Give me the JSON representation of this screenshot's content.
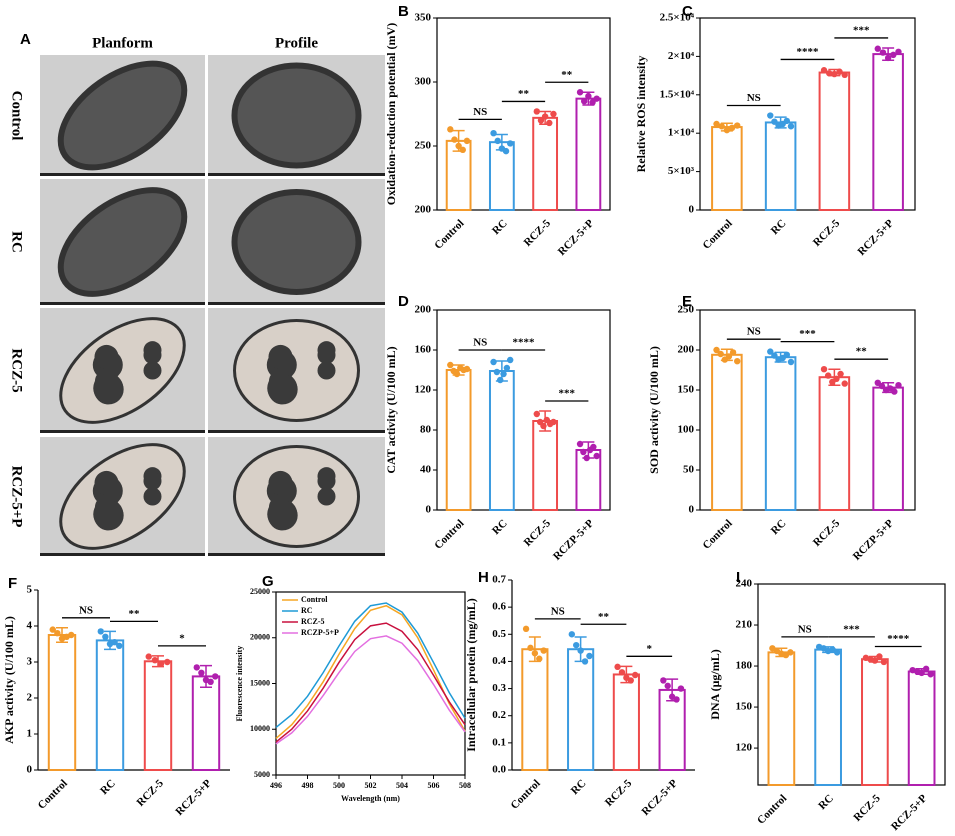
{
  "panel_a": {
    "label": "A",
    "columns": [
      "Planform",
      "Profile"
    ],
    "rows": [
      "Control",
      "RC",
      "RCZ-5",
      "RCZ-5+P"
    ]
  },
  "chart_data": [
    {
      "type": "bar",
      "panel_label": "B",
      "y_label": "Oxidation-reduction potential (mV)",
      "box": true,
      "categories": [
        "Control",
        "RC",
        "RCZ-5",
        "RCZ-5+P"
      ],
      "colors": [
        "#f39a2b",
        "#3b9be0",
        "#ee4b4b",
        "#b01fae"
      ],
      "values": [
        254,
        253,
        272,
        287
      ],
      "errors": [
        8,
        6,
        5,
        5
      ],
      "points": [
        [
          263,
          255,
          250,
          247,
          254
        ],
        [
          260,
          254,
          248,
          246,
          252
        ],
        [
          277,
          270,
          273,
          268,
          275
        ],
        [
          292,
          285,
          289,
          284,
          287
        ]
      ],
      "ylim": [
        200,
        350
      ],
      "yticks": [
        200,
        250,
        300,
        350
      ],
      "annotations": [
        {
          "from": "Control",
          "to": "RC",
          "label": "NS"
        },
        {
          "from": "RC",
          "to": "RCZ-5",
          "label": "**"
        },
        {
          "from": "RCZ-5",
          "to": "RCZ-5+P",
          "label": "**"
        }
      ]
    },
    {
      "type": "bar",
      "panel_label": "C",
      "y_label": "Relative ROS intensity",
      "box": true,
      "categories": [
        "Control",
        "RC",
        "RCZ-5",
        "RCZ-5+P"
      ],
      "colors": [
        "#f39a2b",
        "#3b9be0",
        "#ee4b4b",
        "#b01fae"
      ],
      "values": [
        10800,
        11400,
        17900,
        20300
      ],
      "errors": [
        500,
        700,
        400,
        800
      ],
      "points": [
        [
          11200,
          10900,
          10400,
          10700,
          11000
        ],
        [
          12300,
          11500,
          11000,
          11200,
          11600,
          10900
        ],
        [
          18200,
          17800,
          17700,
          18000,
          17600
        ],
        [
          21000,
          20500,
          19800,
          20200,
          20600
        ]
      ],
      "ylim": [
        0,
        25000
      ],
      "yticks": [
        0,
        {
          "value": 5000,
          "label": "5×10³"
        },
        {
          "value": 10000,
          "label": "1×10⁴"
        },
        {
          "value": 15000,
          "label": "1.5×10⁴"
        },
        {
          "value": 20000,
          "label": "2×10⁴"
        },
        {
          "value": 25000,
          "label": "2.5×10⁴"
        }
      ],
      "annotations": [
        {
          "from": "Control",
          "to": "RC",
          "label": "NS"
        },
        {
          "from": "RC",
          "to": "RCZ-5",
          "label": "****"
        },
        {
          "from": "RCZ-5",
          "to": "RCZ-5+P",
          "label": "***"
        }
      ]
    },
    {
      "type": "bar",
      "panel_label": "D",
      "y_label": "CAT activity (U/100 mL)",
      "box": true,
      "categories": [
        "Control",
        "RC",
        "RCZ-5",
        "RCZP-5+P"
      ],
      "colors": [
        "#f39a2b",
        "#3b9be0",
        "#ee4b4b",
        "#b01fae"
      ],
      "values": [
        140,
        139,
        89,
        60
      ],
      "errors": [
        5,
        10,
        10,
        8
      ],
      "points": [
        [
          145,
          139,
          136,
          142,
          140,
          141
        ],
        [
          148,
          138,
          130,
          136,
          142,
          150
        ],
        [
          96,
          88,
          84,
          90,
          86,
          88
        ],
        [
          66,
          58,
          52,
          60,
          63,
          54
        ]
      ],
      "ylim": [
        0,
        200
      ],
      "yticks": [
        0,
        40,
        80,
        120,
        160,
        200
      ],
      "annotations": [
        {
          "from": "Control",
          "to": "RC",
          "label": "NS"
        },
        {
          "from": "RC",
          "to": "RCZ-5",
          "label": "****"
        },
        {
          "from": "RCZ-5",
          "to": "RCZP-5+P",
          "label": "***"
        }
      ]
    },
    {
      "type": "bar",
      "panel_label": "E",
      "y_label": "SOD activity (U/100 mL)",
      "box": true,
      "categories": [
        "Control",
        "RC",
        "RCZ-5",
        "RCZP-5+P"
      ],
      "colors": [
        "#f39a2b",
        "#3b9be0",
        "#ee4b4b",
        "#b01fae"
      ],
      "values": [
        194,
        191,
        166,
        153
      ],
      "errors": [
        7,
        6,
        10,
        6
      ],
      "points": [
        [
          200,
          195,
          188,
          192,
          197,
          186
        ],
        [
          198,
          193,
          188,
          190,
          194,
          185
        ],
        [
          176,
          168,
          160,
          164,
          170,
          158
        ],
        [
          159,
          155,
          150,
          152,
          148,
          156
        ]
      ],
      "ylim": [
        0,
        250
      ],
      "yticks": [
        0,
        50,
        100,
        150,
        200,
        250
      ],
      "annotations": [
        {
          "from": "Control",
          "to": "RC",
          "label": "NS"
        },
        {
          "from": "RC",
          "to": "RCZ-5",
          "label": "***"
        },
        {
          "from": "RCZ-5",
          "to": "RCZP-5+P",
          "label": "**"
        }
      ]
    },
    {
      "type": "bar",
      "panel_label": "F",
      "y_label": "AKP activity (U/100 mL)",
      "box": false,
      "categories": [
        "Control",
        "RC",
        "RCZ-5",
        "RCZ-5+P"
      ],
      "colors": [
        "#f39a2b",
        "#3b9be0",
        "#ee4b4b",
        "#b01fae"
      ],
      "values": [
        3.75,
        3.6,
        3.02,
        2.6
      ],
      "errors": [
        0.2,
        0.25,
        0.15,
        0.3
      ],
      "points": [
        [
          3.9,
          3.8,
          3.65,
          3.7,
          3.75
        ],
        [
          3.85,
          3.7,
          3.5,
          3.55,
          3.45
        ],
        [
          3.15,
          3.05,
          2.95,
          3.0
        ],
        [
          2.85,
          2.7,
          2.5,
          2.45,
          2.6
        ]
      ],
      "ylim": [
        0,
        5
      ],
      "yticks": [
        0,
        1,
        2,
        3,
        4,
        5
      ],
      "annotations": [
        {
          "from": "Control",
          "to": "RC",
          "label": "NS"
        },
        {
          "from": "RC",
          "to": "RCZ-5",
          "label": "**"
        },
        {
          "from": "RCZ-5",
          "to": "RCZ-5+P",
          "label": "*"
        }
      ]
    },
    {
      "type": "line",
      "panel_label": "G",
      "x_label": "Wavelength (nm)",
      "y_label": "Fluorescence intensity",
      "box": true,
      "legend": "top-left",
      "x": [
        496,
        497,
        498,
        499,
        500,
        501,
        502,
        503,
        504,
        505,
        506,
        507,
        508
      ],
      "series": [
        {
          "name": "Control",
          "color": "#f5a623",
          "values": [
            9000,
            10500,
            12600,
            15200,
            18200,
            21000,
            23000,
            23500,
            22500,
            20000,
            16500,
            12800,
            9800
          ]
        },
        {
          "name": "RC",
          "color": "#1e9ad6",
          "values": [
            10200,
            11600,
            13600,
            16200,
            19100,
            21800,
            23500,
            23800,
            22800,
            20500,
            17300,
            14000,
            11200
          ]
        },
        {
          "name": "RCZ-5",
          "color": "#c8103e",
          "values": [
            8600,
            10000,
            12000,
            14500,
            17300,
            19800,
            21300,
            21600,
            20700,
            18700,
            15900,
            13000,
            10500
          ]
        },
        {
          "name": "RCZP-5+P",
          "color": "#e36fe0",
          "values": [
            8400,
            9600,
            11400,
            13700,
            16200,
            18500,
            19900,
            20200,
            19400,
            17500,
            14900,
            12100,
            9700
          ]
        }
      ],
      "xlim": [
        496,
        508
      ],
      "xticks": [
        496,
        498,
        500,
        502,
        504,
        506,
        508
      ],
      "ylim": [
        5000,
        25000
      ],
      "yticks": [
        5000,
        10000,
        15000,
        20000,
        25000
      ]
    },
    {
      "type": "bar",
      "panel_label": "H",
      "y_label": "Intracellular protein (mg/mL)",
      "box": false,
      "categories": [
        "Control",
        "RC",
        "RCZ-5",
        "RCZ-5+P"
      ],
      "colors": [
        "#f39a2b",
        "#3b9be0",
        "#ee4b4b",
        "#b01fae"
      ],
      "values": [
        0.445,
        0.445,
        0.352,
        0.295
      ],
      "errors": [
        0.045,
        0.045,
        0.03,
        0.04
      ],
      "points": [
        [
          0.52,
          0.45,
          0.43,
          0.41,
          0.44
        ],
        [
          0.5,
          0.46,
          0.44,
          0.4,
          0.42
        ],
        [
          0.38,
          0.36,
          0.34,
          0.33,
          0.35
        ],
        [
          0.33,
          0.31,
          0.27,
          0.26,
          0.3
        ]
      ],
      "ylim": [
        0,
        0.7
      ],
      "yticks": [
        {
          "value": 0,
          "label": "0.0"
        },
        0.1,
        0.2,
        0.3,
        0.4,
        0.5,
        0.6,
        0.7
      ],
      "annotations": [
        {
          "from": "Control",
          "to": "RC",
          "label": "NS"
        },
        {
          "from": "RC",
          "to": "RCZ-5",
          "label": "**"
        },
        {
          "from": "RCZ-5",
          "to": "RCZ-5+P",
          "label": "*"
        }
      ]
    },
    {
      "type": "bar",
      "panel_label": "I",
      "y_label": "DNA (μg/mL)",
      "box": true,
      "categories": [
        "Control",
        "RC",
        "RCZ-5",
        "RCZ-5+P"
      ],
      "colors": [
        "#f39a2b",
        "#3b9be0",
        "#ee4b4b",
        "#b01fae"
      ],
      "values": [
        190,
        192,
        185,
        176
      ],
      "errors": [
        3,
        2,
        2,
        2
      ],
      "points": [
        [
          193,
          191,
          189,
          188,
          190
        ],
        [
          194,
          193,
          191,
          192,
          190
        ],
        [
          186,
          185,
          184,
          187,
          183
        ],
        [
          177,
          176,
          175,
          178,
          174
        ]
      ],
      "ylim": [
        93,
        240
      ],
      "yticks": [
        120,
        150,
        180,
        210,
        240
      ],
      "annotations": [
        {
          "from": "Control",
          "to": "RC",
          "label": "NS"
        },
        {
          "from": "RC",
          "to": "RCZ-5",
          "label": "***"
        },
        {
          "from": "RCZ-5",
          "to": "RCZ-5+P",
          "label": "****"
        }
      ]
    }
  ]
}
